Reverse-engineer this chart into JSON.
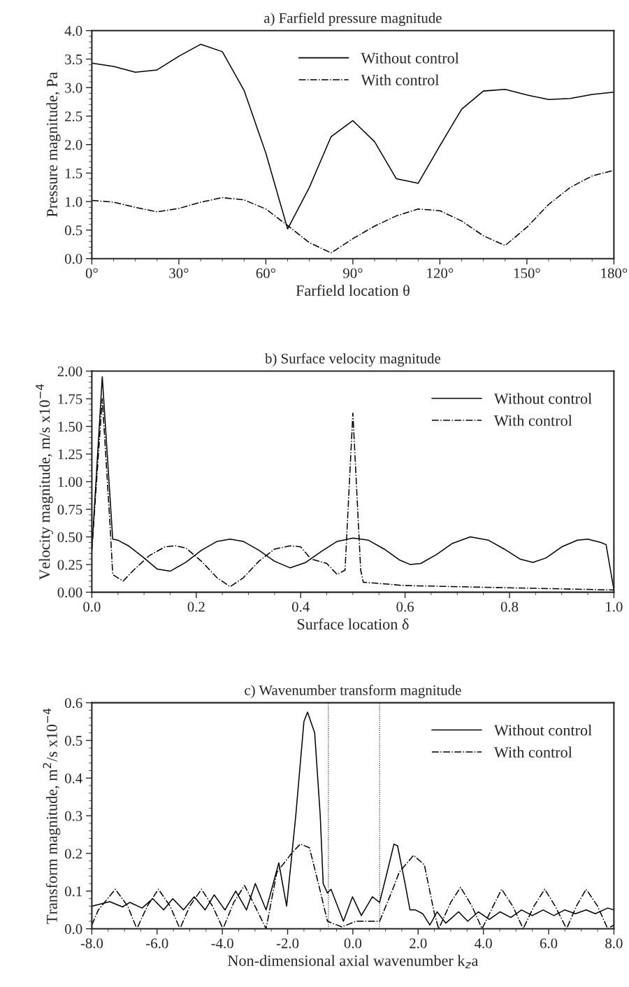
{
  "chart_data": [
    {
      "type": "line",
      "title": "a) Farfield pressure magnitude",
      "xlabel": "Farfield location θ",
      "ylabel": "Pressure magnitude, Pa",
      "xlim": [
        0,
        180
      ],
      "xticks": [
        {
          "value": 0,
          "label": "0°"
        },
        {
          "value": 30,
          "label": "30°"
        },
        {
          "value": 60,
          "label": "60°"
        },
        {
          "value": 90,
          "label": "90°"
        },
        {
          "value": 120,
          "label": "120°"
        },
        {
          "value": 150,
          "label": "150°"
        },
        {
          "value": 180,
          "label": "180°"
        }
      ],
      "ylim": [
        0,
        4
      ],
      "yticks": [
        {
          "value": 0,
          "label": "0.0"
        },
        {
          "value": 0.5,
          "label": "0.5"
        },
        {
          "value": 1,
          "label": "1.0"
        },
        {
          "value": 1.5,
          "label": "1.5"
        },
        {
          "value": 2,
          "label": "2.0"
        },
        {
          "value": 2.5,
          "label": "2.5"
        },
        {
          "value": 3,
          "label": "3.0"
        },
        {
          "value": 3.5,
          "label": "3.5"
        },
        {
          "value": 4,
          "label": "4.0"
        }
      ],
      "legend": "top",
      "grid": false,
      "x": [
        0,
        7.5,
        15,
        22.5,
        30,
        37.5,
        45,
        52.5,
        60,
        67.5,
        75,
        82.5,
        90,
        97.5,
        105,
        112.5,
        120,
        127.5,
        135,
        142.5,
        150,
        157.5,
        165,
        172.5,
        180
      ],
      "series": [
        {
          "name": "Without control",
          "color": "#000000",
          "line_style": "solid",
          "values": [
            3.43,
            3.37,
            3.27,
            3.31,
            3.55,
            3.76,
            3.63,
            2.95,
            1.85,
            0.52,
            1.25,
            2.14,
            2.42,
            2.05,
            1.4,
            1.32,
            1.98,
            2.62,
            2.94,
            2.97,
            2.87,
            2.79,
            2.81,
            2.88,
            2.92
          ]
        },
        {
          "name": "With control",
          "color": "#000000",
          "line_style": "dashdot",
          "values": [
            1.02,
            0.99,
            0.9,
            0.82,
            0.88,
            0.99,
            1.07,
            1.03,
            0.87,
            0.58,
            0.28,
            0.1,
            0.35,
            0.57,
            0.75,
            0.87,
            0.84,
            0.66,
            0.4,
            0.23,
            0.55,
            0.95,
            1.25,
            1.45,
            1.55
          ]
        }
      ]
    },
    {
      "type": "line",
      "title": "b) Surface velocity magnitude",
      "xlabel": "Surface location δ",
      "ylabel": "Velocity magnitude, m/s x10$^{−4}$",
      "xlim": [
        0,
        1
      ],
      "xticks": [
        {
          "value": 0,
          "label": "0.0"
        },
        {
          "value": 0.2,
          "label": "0.2"
        },
        {
          "value": 0.4,
          "label": "0.4"
        },
        {
          "value": 0.6,
          "label": "0.6"
        },
        {
          "value": 0.8,
          "label": "0.8"
        },
        {
          "value": 1,
          "label": "1.0"
        }
      ],
      "ylim": [
        0,
        2
      ],
      "yticks": [
        {
          "value": 0,
          "label": "0.00"
        },
        {
          "value": 0.25,
          "label": "0.25"
        },
        {
          "value": 0.5,
          "label": "0.50"
        },
        {
          "value": 0.75,
          "label": "0.75"
        },
        {
          "value": 1,
          "label": "1.00"
        },
        {
          "value": 1.25,
          "label": "1.25"
        },
        {
          "value": 1.5,
          "label": "1.50"
        },
        {
          "value": 1.75,
          "label": "1.75"
        },
        {
          "value": 2,
          "label": "2.00"
        }
      ],
      "legend": "top right",
      "grid": false,
      "series": [
        {
          "name": "Without control",
          "color": "#000000",
          "line_style": "solid",
          "x": [
            0,
            0.02,
            0.04,
            0.05,
            0.07,
            0.1,
            0.125,
            0.15,
            0.18,
            0.21,
            0.24,
            0.265,
            0.29,
            0.32,
            0.35,
            0.38,
            0.41,
            0.44,
            0.47,
            0.5,
            0.53,
            0.56,
            0.59,
            0.61,
            0.63,
            0.66,
            0.69,
            0.725,
            0.76,
            0.79,
            0.82,
            0.845,
            0.87,
            0.9,
            0.93,
            0.95,
            0.975,
            0.985,
            1.0
          ],
          "values": [
            0.38,
            1.95,
            0.48,
            0.47,
            0.42,
            0.31,
            0.21,
            0.19,
            0.27,
            0.38,
            0.46,
            0.48,
            0.46,
            0.38,
            0.28,
            0.22,
            0.27,
            0.37,
            0.46,
            0.49,
            0.47,
            0.39,
            0.29,
            0.25,
            0.26,
            0.34,
            0.44,
            0.5,
            0.47,
            0.39,
            0.3,
            0.27,
            0.31,
            0.41,
            0.47,
            0.48,
            0.45,
            0.43,
            0.02
          ]
        },
        {
          "name": "With control",
          "color": "#000000",
          "line_style": "dashdot",
          "x": [
            0,
            0.02,
            0.035,
            0.04,
            0.06,
            0.08,
            0.11,
            0.14,
            0.16,
            0.18,
            0.21,
            0.24,
            0.265,
            0.29,
            0.32,
            0.35,
            0.38,
            0.4,
            0.42,
            0.45,
            0.47,
            0.485,
            0.5,
            0.515,
            0.52,
            0.6,
            0.7,
            0.8,
            0.9,
            1.0
          ],
          "values": [
            0.38,
            1.75,
            0.6,
            0.16,
            0.1,
            0.2,
            0.33,
            0.41,
            0.42,
            0.4,
            0.28,
            0.13,
            0.05,
            0.13,
            0.28,
            0.39,
            0.42,
            0.41,
            0.3,
            0.26,
            0.16,
            0.2,
            1.62,
            0.2,
            0.09,
            0.06,
            0.05,
            0.04,
            0.03,
            0.02
          ]
        }
      ]
    },
    {
      "type": "line",
      "title": "c) Wavenumber transform magnitude",
      "xlabel": "Non-dimensional axial wavenumber k$_{z}$a",
      "ylabel": "Transform magnitude, m$^{2}$/s x10$^{−4}$",
      "xlim": [
        -8,
        8
      ],
      "xticks": [
        {
          "value": -8,
          "label": "-8.0"
        },
        {
          "value": -6,
          "label": "-6.0"
        },
        {
          "value": -4,
          "label": "-4.0"
        },
        {
          "value": -2,
          "label": "-2.0"
        },
        {
          "value": 0,
          "label": "0.0"
        },
        {
          "value": 2,
          "label": "2.0"
        },
        {
          "value": 4,
          "label": "4.0"
        },
        {
          "value": 6,
          "label": "6.0"
        },
        {
          "value": 8,
          "label": "8.0"
        }
      ],
      "ylim": [
        0,
        0.6
      ],
      "yticks": [
        {
          "value": 0,
          "label": "0.0"
        },
        0.1,
        0.2,
        0.3,
        0.4,
        0.5,
        0.6
      ],
      "legend": "top right",
      "grid": false,
      "ref_lines": [
        {
          "axis": "x",
          "value": -0.75,
          "line_style": "dotted",
          "color": "#000000"
        },
        {
          "axis": "x",
          "value": 0.82,
          "line_style": "dotted",
          "color": "#000000"
        }
      ],
      "series": [
        {
          "name": "Without control",
          "color": "#000000",
          "line_style": "solid",
          "x": [
            -8,
            -7.45,
            -7.06,
            -6.84,
            -6.46,
            -6.13,
            -5.8,
            -5.52,
            -5.19,
            -4.86,
            -4.53,
            -4.25,
            -3.92,
            -3.59,
            -3.26,
            -2.99,
            -2.66,
            -2.27,
            -2.03,
            -1.75,
            -1.5,
            -1.39,
            -1.17,
            -1.0,
            -0.91,
            -0.78,
            -0.67,
            -0.29,
            -0.01,
            0.26,
            0.6,
            0.82,
            1.05,
            1.26,
            1.37,
            1.6,
            1.75,
            1.92,
            2.14,
            2.36,
            2.58,
            2.85,
            3.24,
            3.52,
            3.85,
            4.18,
            4.51,
            4.84,
            5.17,
            5.5,
            5.83,
            6.16,
            6.49,
            6.82,
            7.15,
            7.43,
            7.81,
            8.0
          ],
          "values": [
            0.06,
            0.072,
            0.058,
            0.07,
            0.055,
            0.08,
            0.05,
            0.08,
            0.05,
            0.085,
            0.05,
            0.09,
            0.05,
            0.1,
            0.05,
            0.12,
            0.05,
            0.175,
            0.06,
            0.3,
            0.55,
            0.575,
            0.52,
            0.3,
            0.12,
            0.095,
            0.105,
            0.02,
            0.085,
            0.035,
            0.085,
            0.07,
            0.15,
            0.225,
            0.22,
            0.12,
            0.05,
            0.05,
            0.04,
            0.01,
            0.045,
            0.015,
            0.045,
            0.02,
            0.045,
            0.025,
            0.045,
            0.03,
            0.05,
            0.035,
            0.05,
            0.035,
            0.05,
            0.04,
            0.05,
            0.04,
            0.055,
            0.05
          ]
        },
        {
          "name": "With control",
          "color": "#000000",
          "line_style": "dashdot",
          "x": [
            -8,
            -7.8,
            -7.28,
            -6.9,
            -6.62,
            -6.3,
            -5.96,
            -5.6,
            -5.3,
            -5.0,
            -4.64,
            -4.3,
            -3.98,
            -3.65,
            -3.32,
            -3.0,
            -2.66,
            -2.33,
            -1.88,
            -1.61,
            -1.33,
            -1.0,
            -0.78,
            -0.34,
            0.1,
            0.65,
            0.82,
            1.2,
            1.42,
            1.86,
            2.19,
            2.5,
            2.63,
            3.0,
            3.3,
            3.65,
            3.96,
            4.3,
            4.56,
            4.9,
            5.22,
            5.55,
            5.88,
            6.2,
            6.55,
            6.85,
            7.15,
            7.5,
            7.81,
            8.0
          ],
          "values": [
            0.01,
            0.05,
            0.105,
            0.06,
            0.0,
            0.06,
            0.105,
            0.06,
            0.0,
            0.06,
            0.105,
            0.06,
            0.0,
            0.07,
            0.115,
            0.06,
            0.0,
            0.15,
            0.2,
            0.225,
            0.215,
            0.1,
            0.02,
            0.005,
            0.02,
            0.02,
            0.02,
            0.1,
            0.15,
            0.195,
            0.17,
            0.04,
            0.0,
            0.07,
            0.11,
            0.06,
            0.0,
            0.06,
            0.105,
            0.06,
            0.0,
            0.06,
            0.105,
            0.06,
            0.0,
            0.06,
            0.105,
            0.06,
            0.0,
            0.01
          ]
        }
      ]
    }
  ]
}
